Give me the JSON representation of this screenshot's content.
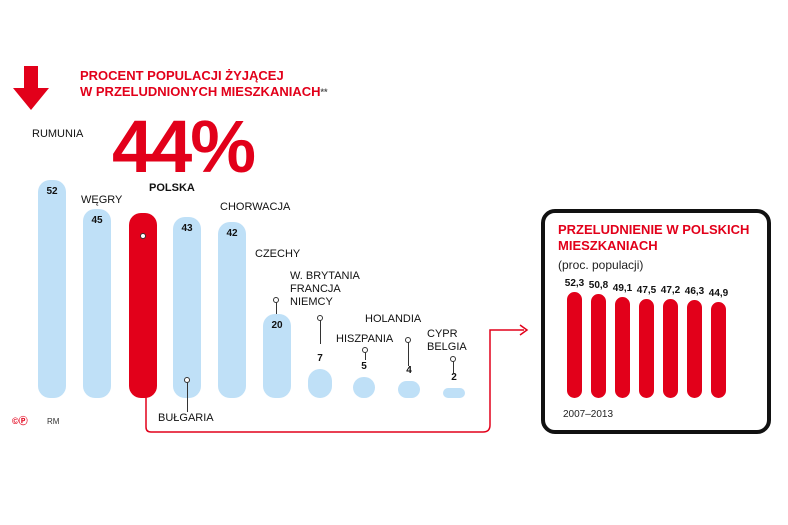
{
  "title": {
    "line1": "PROCENT POPULACJI ŻYJĄCEJ",
    "line2": "W PRZELUDNIONYCH MIESZKANIACH",
    "mark": "**"
  },
  "headline_value": "44%",
  "credits": {
    "logo": "©Ⓟ",
    "author": "RM"
  },
  "colors": {
    "accent": "#e2001a",
    "bar": "#bfe0f7"
  },
  "icons": {
    "arrow": "down-arrow-icon"
  },
  "chart_data": [
    {
      "type": "bar",
      "title": "PROCENT POPULACJI ŻYJĄCEJ W PRZELUDNIONYCH MIESZKANIACH**",
      "highlight": "POLSKA",
      "ylim": [
        0,
        52
      ],
      "categories": [
        "RUMUNIA",
        "WĘGRY",
        "POLSKA",
        "BUŁGARIA",
        "CHORWACJA",
        "CZECHY",
        "W. BRYTANIA FRANCJA NIEMCY",
        "HISZPANIA",
        "HOLANDIA",
        "CYPR BELGIA"
      ],
      "values": [
        52,
        45,
        44,
        43,
        42,
        20,
        7,
        5,
        4,
        2
      ],
      "labels": [
        "52",
        "45",
        "",
        "43",
        "42",
        "20",
        "7",
        "5",
        "4",
        "2"
      ]
    },
    {
      "type": "bar",
      "title": "PRZELUDNIENIE W POLSKICH MIESZKANIACH",
      "subtitle": "(proc. populacji)",
      "x_range_label": "2007–2013",
      "values": [
        52.3,
        50.8,
        49.1,
        47.5,
        47.2,
        46.3,
        44.9
      ],
      "labels": [
        "52,3",
        "50,8",
        "49,1",
        "47,5",
        "47,2",
        "46,3",
        "44,9"
      ]
    }
  ]
}
